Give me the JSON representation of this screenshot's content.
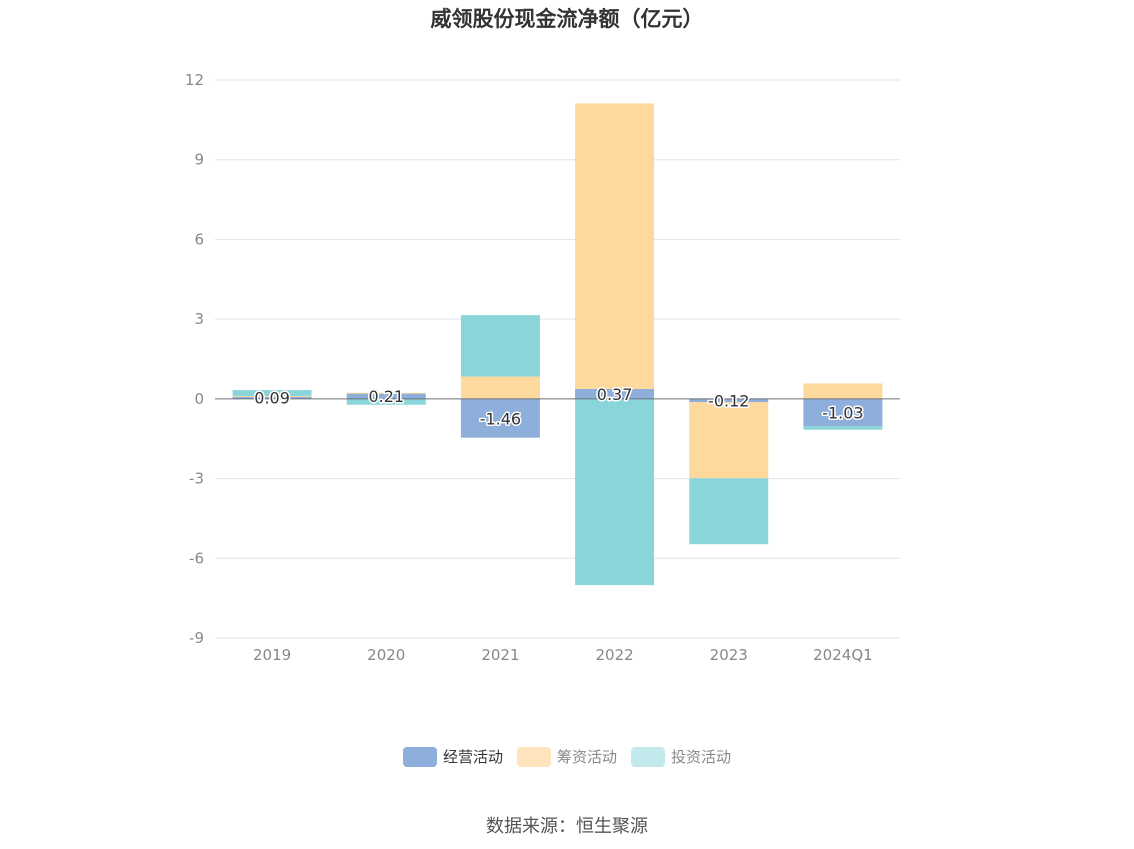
{
  "chart_data": {
    "type": "bar",
    "stacked": true,
    "title": "威领股份现金流净额（亿元）",
    "categories": [
      "2019",
      "2020",
      "2021",
      "2022",
      "2023",
      "2024Q1"
    ],
    "series": [
      {
        "name": "经营活动",
        "color": "#8eaedc",
        "values": [
          0.09,
          0.21,
          -1.46,
          0.37,
          -0.12,
          -1.03
        ]
      },
      {
        "name": "筹资活动",
        "color": "#fed99e",
        "values": [
          0.02,
          0.02,
          0.84,
          10.75,
          -2.87,
          0.58
        ]
      },
      {
        "name": "投资活动",
        "color": "#89d5d9",
        "values": [
          0.22,
          -0.22,
          2.31,
          -7.01,
          -2.48,
          -0.13
        ]
      }
    ],
    "data_labels": [
      "0.09",
      "0.21",
      "-1.46",
      "0.37",
      "-0.12",
      "-1.03"
    ],
    "ylim": [
      -9,
      12
    ],
    "yticks": [
      "12",
      "9",
      "6",
      "3",
      "0",
      "-3",
      "-6",
      "-9"
    ],
    "grid": true,
    "legend_position": "bottom",
    "source": "数据来源：恒生聚源"
  },
  "legend_colors": {
    "经营活动": "#8eaedc",
    "筹资活动": "#ffe4bd",
    "投资活动": "#c2eaed"
  }
}
